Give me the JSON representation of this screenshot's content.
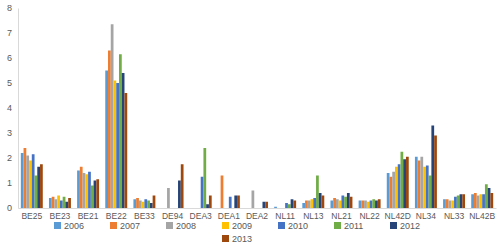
{
  "chart_data": {
    "type": "bar",
    "categories": [
      "BE25",
      "BE23",
      "BE21",
      "BE22",
      "BE33",
      "DE94",
      "DEA3",
      "DEA1",
      "DEA2",
      "NL11",
      "NL13",
      "NL21",
      "NL22",
      "NL42D",
      "NL34",
      "NL33",
      "NL42B"
    ],
    "series": [
      {
        "name": "2006",
        "color": "#5b9bd5",
        "values": [
          2.2,
          0.4,
          1.5,
          5.5,
          0.35,
          0,
          0,
          0,
          0,
          0.05,
          0.2,
          0.3,
          0.3,
          1.4,
          2.05,
          0.35,
          0.55
        ]
      },
      {
        "name": "2007",
        "color": "#ed7d31",
        "values": [
          2.4,
          0.45,
          1.65,
          6.3,
          0.4,
          0,
          0,
          1.3,
          0,
          0,
          0.3,
          0.4,
          0.3,
          1.25,
          1.9,
          0.35,
          0.6
        ]
      },
      {
        "name": "2008",
        "color": "#a5a5a5",
        "values": [
          2.1,
          0.35,
          1.4,
          7.35,
          0.3,
          0.8,
          0,
          0,
          0.7,
          0,
          0.3,
          0.35,
          0.3,
          1.45,
          2.05,
          0.3,
          0.5
        ]
      },
      {
        "name": "2009",
        "color": "#ffc000",
        "values": [
          1.9,
          0.5,
          1.35,
          5.1,
          0.25,
          0,
          0,
          0,
          0,
          0,
          0.35,
          0.3,
          0.25,
          1.65,
          1.65,
          0.3,
          0.55
        ]
      },
      {
        "name": "2010",
        "color": "#4472c4",
        "values": [
          2.15,
          0.3,
          1.45,
          5.0,
          0.35,
          0,
          1.25,
          0.45,
          0,
          0.2,
          0.4,
          0.5,
          0.3,
          1.75,
          1.7,
          0.45,
          0.55
        ]
      },
      {
        "name": "2011",
        "color": "#70ad47",
        "values": [
          1.3,
          0.45,
          0.9,
          6.15,
          0.3,
          0,
          2.4,
          0,
          0,
          0.15,
          1.3,
          0.45,
          0.35,
          2.25,
          1.3,
          0.5,
          0.95
        ]
      },
      {
        "name": "2012",
        "color": "#264478",
        "values": [
          1.65,
          0.25,
          1.1,
          5.4,
          0.2,
          1.1,
          0.15,
          0.5,
          0.25,
          0.35,
          0.6,
          0.6,
          0.3,
          1.95,
          3.3,
          0.55,
          0.8
        ]
      },
      {
        "name": "2013",
        "color": "#9e480e",
        "values": [
          1.75,
          0.4,
          1.15,
          4.6,
          0.5,
          1.75,
          0.5,
          0.5,
          0.25,
          0.3,
          0.5,
          0.45,
          0.35,
          2.05,
          2.9,
          0.55,
          0.6
        ]
      }
    ],
    "ylim": [
      0,
      8
    ],
    "yticks": [
      0,
      1,
      2,
      3,
      4,
      5,
      6,
      7,
      8
    ],
    "grid": false,
    "legend": "bottom"
  }
}
